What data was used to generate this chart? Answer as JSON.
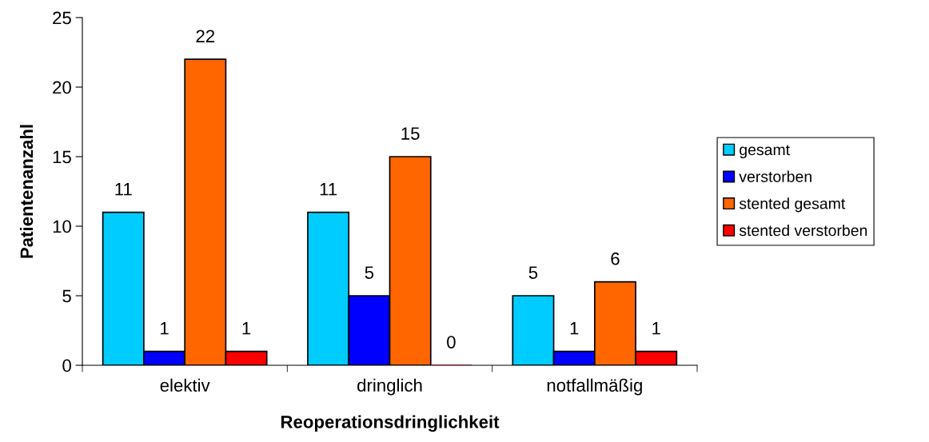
{
  "chart_data": {
    "type": "bar",
    "xlabel": "Reoperationsdringlichkeit",
    "ylabel": "Patientenanzahl",
    "categories": [
      "elektiv",
      "dringlich",
      "notfallmäßig"
    ],
    "series": [
      {
        "name": "gesamt",
        "color": "#00ccff",
        "values": [
          11,
          11,
          5
        ]
      },
      {
        "name": "verstorben",
        "color": "#0000ff",
        "values": [
          1,
          5,
          1
        ]
      },
      {
        "name": "stented gesamt",
        "color": "#ff6600",
        "values": [
          22,
          15,
          6
        ]
      },
      {
        "name": "stented verstorben",
        "color": "#ff0000",
        "values": [
          1,
          0,
          1
        ]
      }
    ],
    "ylim": [
      0,
      25
    ],
    "yticks": [
      0,
      5,
      10,
      15,
      20,
      25
    ],
    "data_labels": true,
    "grid": false,
    "legend": "right"
  }
}
